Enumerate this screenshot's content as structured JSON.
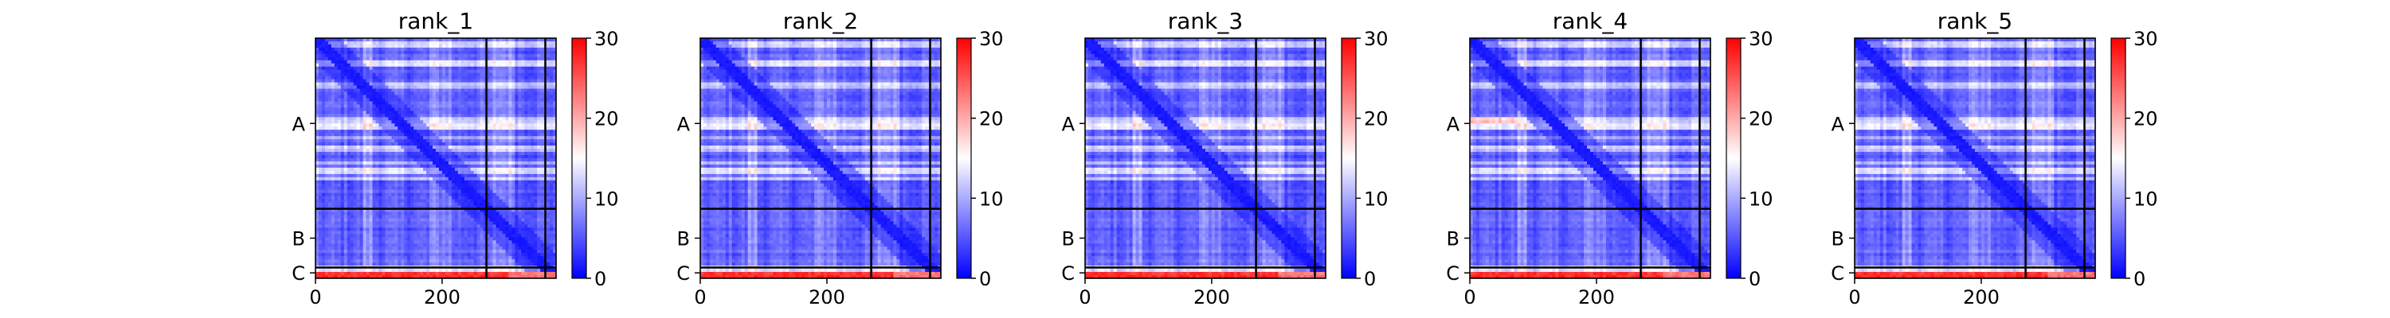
{
  "figure": {
    "colorbar_ticks": [
      0,
      10,
      20,
      30
    ],
    "colormap": [
      "#0000ff",
      "#ffffff",
      "#ff0000"
    ]
  },
  "chart_data": [
    {
      "type": "heatmap",
      "title": "rank_1",
      "xlim": [
        0,
        380
      ],
      "x_ticks": [
        0,
        200
      ],
      "y_categories": [
        "A",
        "B",
        "C"
      ],
      "chain_boundaries": [
        270,
        363
      ],
      "total_length": 380,
      "vmin": 0,
      "vmax": 30,
      "xlabel": "",
      "ylabel": ""
    },
    {
      "type": "heatmap",
      "title": "rank_2",
      "xlim": [
        0,
        380
      ],
      "x_ticks": [
        0,
        200
      ],
      "y_categories": [
        "A",
        "B",
        "C"
      ],
      "chain_boundaries": [
        270,
        363
      ],
      "total_length": 380,
      "vmin": 0,
      "vmax": 30,
      "xlabel": "",
      "ylabel": ""
    },
    {
      "type": "heatmap",
      "title": "rank_3",
      "xlim": [
        0,
        380
      ],
      "x_ticks": [
        0,
        200
      ],
      "y_categories": [
        "A",
        "B",
        "C"
      ],
      "chain_boundaries": [
        270,
        363
      ],
      "total_length": 380,
      "vmin": 0,
      "vmax": 30,
      "xlabel": "",
      "ylabel": ""
    },
    {
      "type": "heatmap",
      "title": "rank_4",
      "xlim": [
        0,
        380
      ],
      "x_ticks": [
        0,
        200
      ],
      "y_categories": [
        "A",
        "B",
        "C"
      ],
      "chain_boundaries": [
        270,
        363
      ],
      "total_length": 380,
      "vmin": 0,
      "vmax": 30,
      "xlabel": "",
      "ylabel": ""
    },
    {
      "type": "heatmap",
      "title": "rank_5",
      "xlim": [
        0,
        380
      ],
      "x_ticks": [
        0,
        200
      ],
      "y_categories": [
        "A",
        "B",
        "C"
      ],
      "chain_boundaries": [
        270,
        363
      ],
      "total_length": 380,
      "vmin": 0,
      "vmax": 30,
      "xlabel": "",
      "ylabel": ""
    }
  ]
}
